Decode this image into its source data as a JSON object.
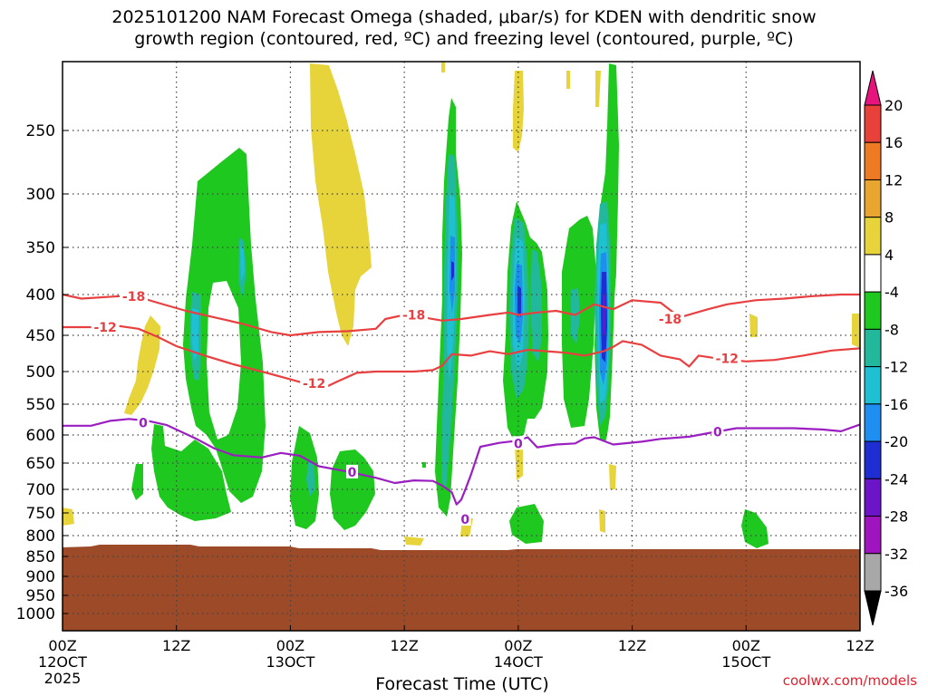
{
  "title": {
    "line1": "2025101200 NAM Forecast Omega (shaded, μbar/s) for KDEN with dendritic snow",
    "line2": "growth region (contoured, red, ºC) and freezing level (contoured, purple, ºC)"
  },
  "credit": "coolwx.com/models",
  "chart_data": {
    "type": "heatmap",
    "title": "2025101200 NAM Forecast Omega (shaded, μbar/s) for KDEN with dendritic snow growth region (contoured, red, ºC) and freezing level (contoured, purple, ºC)",
    "xlabel": "Forecast Time (UTC)",
    "ylabel": "",
    "x_unit": "forecast hour",
    "xlim": [
      0,
      84
    ],
    "y_unit": "hPa",
    "ylim": [
      1050,
      200
    ],
    "y_ticks": [
      250,
      300,
      350,
      400,
      450,
      500,
      550,
      600,
      650,
      700,
      750,
      800,
      850,
      900,
      950,
      1000
    ],
    "x_ticks": [
      {
        "hour": 0,
        "lines": [
          "00Z",
          "12OCT",
          "2025"
        ]
      },
      {
        "hour": 12,
        "lines": [
          "12Z"
        ]
      },
      {
        "hour": 24,
        "lines": [
          "00Z",
          "13OCT"
        ]
      },
      {
        "hour": 36,
        "lines": [
          "12Z"
        ]
      },
      {
        "hour": 48,
        "lines": [
          "00Z",
          "14OCT"
        ]
      },
      {
        "hour": 60,
        "lines": [
          "12Z"
        ]
      },
      {
        "hour": 72,
        "lines": [
          "00Z",
          "15OCT"
        ]
      },
      {
        "hour": 84,
        "lines": [
          "12Z"
        ]
      }
    ],
    "grid": true,
    "colorbar": {
      "placement": "right",
      "labels": [
        "20",
        "16",
        "12",
        "8",
        "4",
        "-4",
        "-8",
        "-12",
        "-16",
        "-20",
        "-24",
        "-28",
        "-32",
        "-36"
      ],
      "bins": [
        {
          "from": 20,
          "to": 24,
          "color": "#e8147e"
        },
        {
          "from": 16,
          "to": 20,
          "color": "#e8413a"
        },
        {
          "from": 12,
          "to": 16,
          "color": "#ee7a24"
        },
        {
          "from": 8,
          "to": 12,
          "color": "#e8a630"
        },
        {
          "from": 4,
          "to": 8,
          "color": "#e6d43a"
        },
        {
          "from": -4,
          "to": 4,
          "color": "#ffffff"
        },
        {
          "from": -8,
          "to": -4,
          "color": "#1ec81e"
        },
        {
          "from": -12,
          "to": -8,
          "color": "#22b89c"
        },
        {
          "from": -16,
          "to": -12,
          "color": "#1ec0d2"
        },
        {
          "from": -20,
          "to": -16,
          "color": "#1e8ef0"
        },
        {
          "from": -24,
          "to": -20,
          "color": "#1e2ed2"
        },
        {
          "from": -28,
          "to": -24,
          "color": "#6c14c8"
        },
        {
          "from": -32,
          "to": -28,
          "color": "#a014c0"
        },
        {
          "from": -36,
          "to": -32,
          "color": "#a8a8a8"
        },
        {
          "from": -40,
          "to": -36,
          "color": "#000000"
        }
      ]
    },
    "ground_color": "#9c4a28",
    "contours": [
      {
        "label": "-18",
        "color": "#e84040",
        "points": [
          [
            0,
            400
          ],
          [
            2,
            405
          ],
          [
            6,
            402
          ],
          [
            8,
            403
          ],
          [
            10,
            410
          ],
          [
            13,
            420
          ],
          [
            16,
            428
          ],
          [
            19,
            436
          ],
          [
            22,
            446
          ],
          [
            24,
            450
          ],
          [
            27,
            446
          ],
          [
            30,
            445
          ],
          [
            33,
            442
          ],
          [
            34,
            430
          ],
          [
            36,
            425
          ],
          [
            38,
            428
          ],
          [
            40,
            432
          ],
          [
            42,
            430
          ],
          [
            45,
            425
          ],
          [
            47,
            422
          ],
          [
            48,
            425
          ],
          [
            50,
            422
          ],
          [
            52,
            420
          ],
          [
            54,
            425
          ],
          [
            56,
            412
          ],
          [
            58,
            418
          ],
          [
            60,
            407
          ],
          [
            63,
            410
          ],
          [
            65,
            428
          ],
          [
            68,
            418
          ],
          [
            70,
            412
          ],
          [
            73,
            407
          ],
          [
            76,
            405
          ],
          [
            79,
            402
          ],
          [
            82,
            400
          ],
          [
            84,
            400
          ]
        ],
        "label_positions": [
          [
            7.5,
            402
          ],
          [
            37,
            425
          ],
          [
            64,
            430
          ]
        ]
      },
      {
        "label": "-12",
        "color": "#e84040",
        "points": [
          [
            0,
            440
          ],
          [
            3,
            440
          ],
          [
            5,
            437
          ],
          [
            8,
            442
          ],
          [
            10,
            452
          ],
          [
            12,
            465
          ],
          [
            15,
            478
          ],
          [
            18,
            490
          ],
          [
            21,
            500
          ],
          [
            24,
            512
          ],
          [
            26,
            520
          ],
          [
            28,
            522
          ],
          [
            29,
            515
          ],
          [
            31,
            502
          ],
          [
            33,
            500
          ],
          [
            35,
            500
          ],
          [
            37,
            500
          ],
          [
            39,
            498
          ],
          [
            40,
            492
          ],
          [
            41,
            476
          ],
          [
            43,
            478
          ],
          [
            45,
            472
          ],
          [
            47,
            476
          ],
          [
            49,
            470
          ],
          [
            51,
            472
          ],
          [
            53,
            474
          ],
          [
            55,
            478
          ],
          [
            57,
            472
          ],
          [
            58,
            466
          ],
          [
            59,
            458
          ],
          [
            61,
            463
          ],
          [
            63,
            478
          ],
          [
            65,
            483
          ],
          [
            66,
            493
          ],
          [
            67,
            478
          ],
          [
            69,
            482
          ],
          [
            72,
            486
          ],
          [
            75,
            484
          ],
          [
            78,
            478
          ],
          [
            81,
            471
          ],
          [
            84,
            468
          ]
        ],
        "label_positions": [
          [
            4.5,
            440
          ],
          [
            26.5,
            518
          ],
          [
            70,
            482
          ]
        ]
      },
      {
        "label": "0",
        "color": "#9b1ec0",
        "points": [
          [
            0,
            585
          ],
          [
            3,
            585
          ],
          [
            5,
            577
          ],
          [
            7,
            574
          ],
          [
            9,
            577
          ],
          [
            11,
            584
          ],
          [
            14,
            606
          ],
          [
            16,
            624
          ],
          [
            18,
            636
          ],
          [
            21,
            640
          ],
          [
            23,
            632
          ],
          [
            25,
            637
          ],
          [
            27,
            656
          ],
          [
            30,
            666
          ],
          [
            33,
            678
          ],
          [
            35,
            688
          ],
          [
            37,
            683
          ],
          [
            39,
            684
          ],
          [
            40,
            693
          ],
          [
            41,
            706
          ],
          [
            41.5,
            732
          ],
          [
            42,
            722
          ],
          [
            42.5,
            697
          ],
          [
            43,
            673
          ],
          [
            44,
            621
          ],
          [
            46,
            614
          ],
          [
            48,
            610
          ],
          [
            49,
            604
          ],
          [
            50,
            622
          ],
          [
            52,
            617
          ],
          [
            54,
            615
          ],
          [
            55,
            606
          ],
          [
            56,
            604
          ],
          [
            58,
            617
          ],
          [
            61,
            612
          ],
          [
            63,
            607
          ],
          [
            66,
            603
          ],
          [
            68,
            597
          ],
          [
            71,
            589
          ],
          [
            74,
            589
          ],
          [
            77,
            589
          ],
          [
            80,
            591
          ],
          [
            82,
            594
          ],
          [
            84,
            583
          ]
        ],
        "label_positions": [
          [
            8.5,
            580
          ],
          [
            30.5,
            667
          ],
          [
            48,
            615
          ],
          [
            69,
            595
          ]
        ]
      },
      {
        "label": "0",
        "color": "#9b1ec0",
        "points": [
          [
            41.9,
            759
          ],
          [
            42.2,
            766
          ],
          [
            42.6,
            769
          ],
          [
            42.9,
            762
          ],
          [
            42.5,
            755
          ],
          [
            41.9,
            759
          ]
        ],
        "label_positions": [
          [
            42.4,
            764
          ]
        ]
      }
    ]
  }
}
